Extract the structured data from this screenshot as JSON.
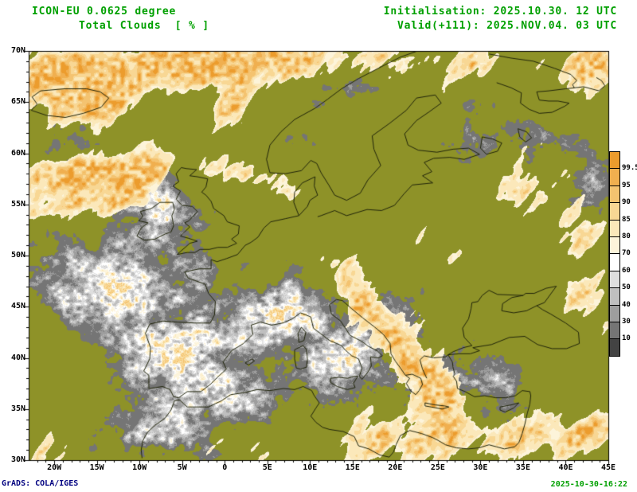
{
  "header": {
    "model_line": "ICON-EU 0.0625 degree",
    "field_line": "Total Clouds  [ % ]",
    "init_line": "Initialisation: 2025.10.30. 12 UTC",
    "valid_line": "Valid(+111): 2025.NOV.04. 03 UTC"
  },
  "footer": {
    "grads_credit": "GrADS: COLA/IGES",
    "timestamp": "2025-10-30-16:22"
  },
  "map": {
    "lat_labels": [
      "70N",
      "65N",
      "60N",
      "55N",
      "50N",
      "45N",
      "40N",
      "35N",
      "30N"
    ],
    "lon_labels": [
      "20W",
      "15W",
      "10W",
      "5W",
      "0",
      "5E",
      "10E",
      "15E",
      "20E",
      "25E",
      "30E",
      "35E",
      "40E",
      "45E"
    ],
    "lat_range_deg": [
      30,
      70
    ],
    "lon_range_deg": [
      -23,
      45
    ]
  },
  "legend": {
    "labels": [
      "99.5",
      "95",
      "90",
      "85",
      "80",
      "70",
      "60",
      "50",
      "40",
      "30",
      "10"
    ],
    "colors": [
      "#ec9c2d",
      "#f0af4f",
      "#f4c370",
      "#f8d794",
      "#fbe8ba",
      "#fdf4da",
      "#ffffff",
      "#dedede",
      "#bfbfbf",
      "#9e9e9e",
      "#757575",
      "#434343"
    ],
    "units": "%"
  },
  "colors": {
    "title_green": "#00a000",
    "credit_blue": "#000080",
    "clear_olive": "#8e9228",
    "coastline": "#20240a",
    "frame": "#000000"
  },
  "chart_data": {
    "type": "heatmap",
    "title": "ICON-EU 0.0625 degree — Total Clouds [%]",
    "x_axis": {
      "ticks": [
        "20W",
        "15W",
        "10W",
        "5W",
        "0",
        "5E",
        "10E",
        "15E",
        "20E",
        "25E",
        "30E",
        "35E",
        "40E",
        "45E"
      ],
      "range_deg": [
        -23,
        45
      ]
    },
    "y_axis": {
      "ticks": [
        "70N",
        "65N",
        "60N",
        "55N",
        "50N",
        "45N",
        "40N",
        "35N",
        "30N"
      ],
      "range_deg": [
        30,
        70
      ]
    },
    "colorbar_levels_percent": [
      99.5,
      95,
      90,
      85,
      80,
      70,
      60,
      50,
      40,
      30,
      10
    ],
    "legend_position": "right",
    "grid": "off",
    "pattern_summary": [
      "Orange shading (cloud cover > 85%): North Atlantic and Norwegian Sea streaks, band along the northern map edge, far north-east corner, diagonal Balkans-to-Greece band, band along eastern North Africa, Caucasus area",
      "Grey/white broken cloud (10-85%): Iberia, Morocco, Bay of Biscay and east Atlantic, Ireland/Scotland, Alps, Italy, central Mediterranean, Aegean, patches over NW Russia and mid-Scandinavia",
      "Olive background = mostly clear (< 10%): Scandinavia, Baltic region, central and eastern Europe, Black Sea"
    ]
  }
}
